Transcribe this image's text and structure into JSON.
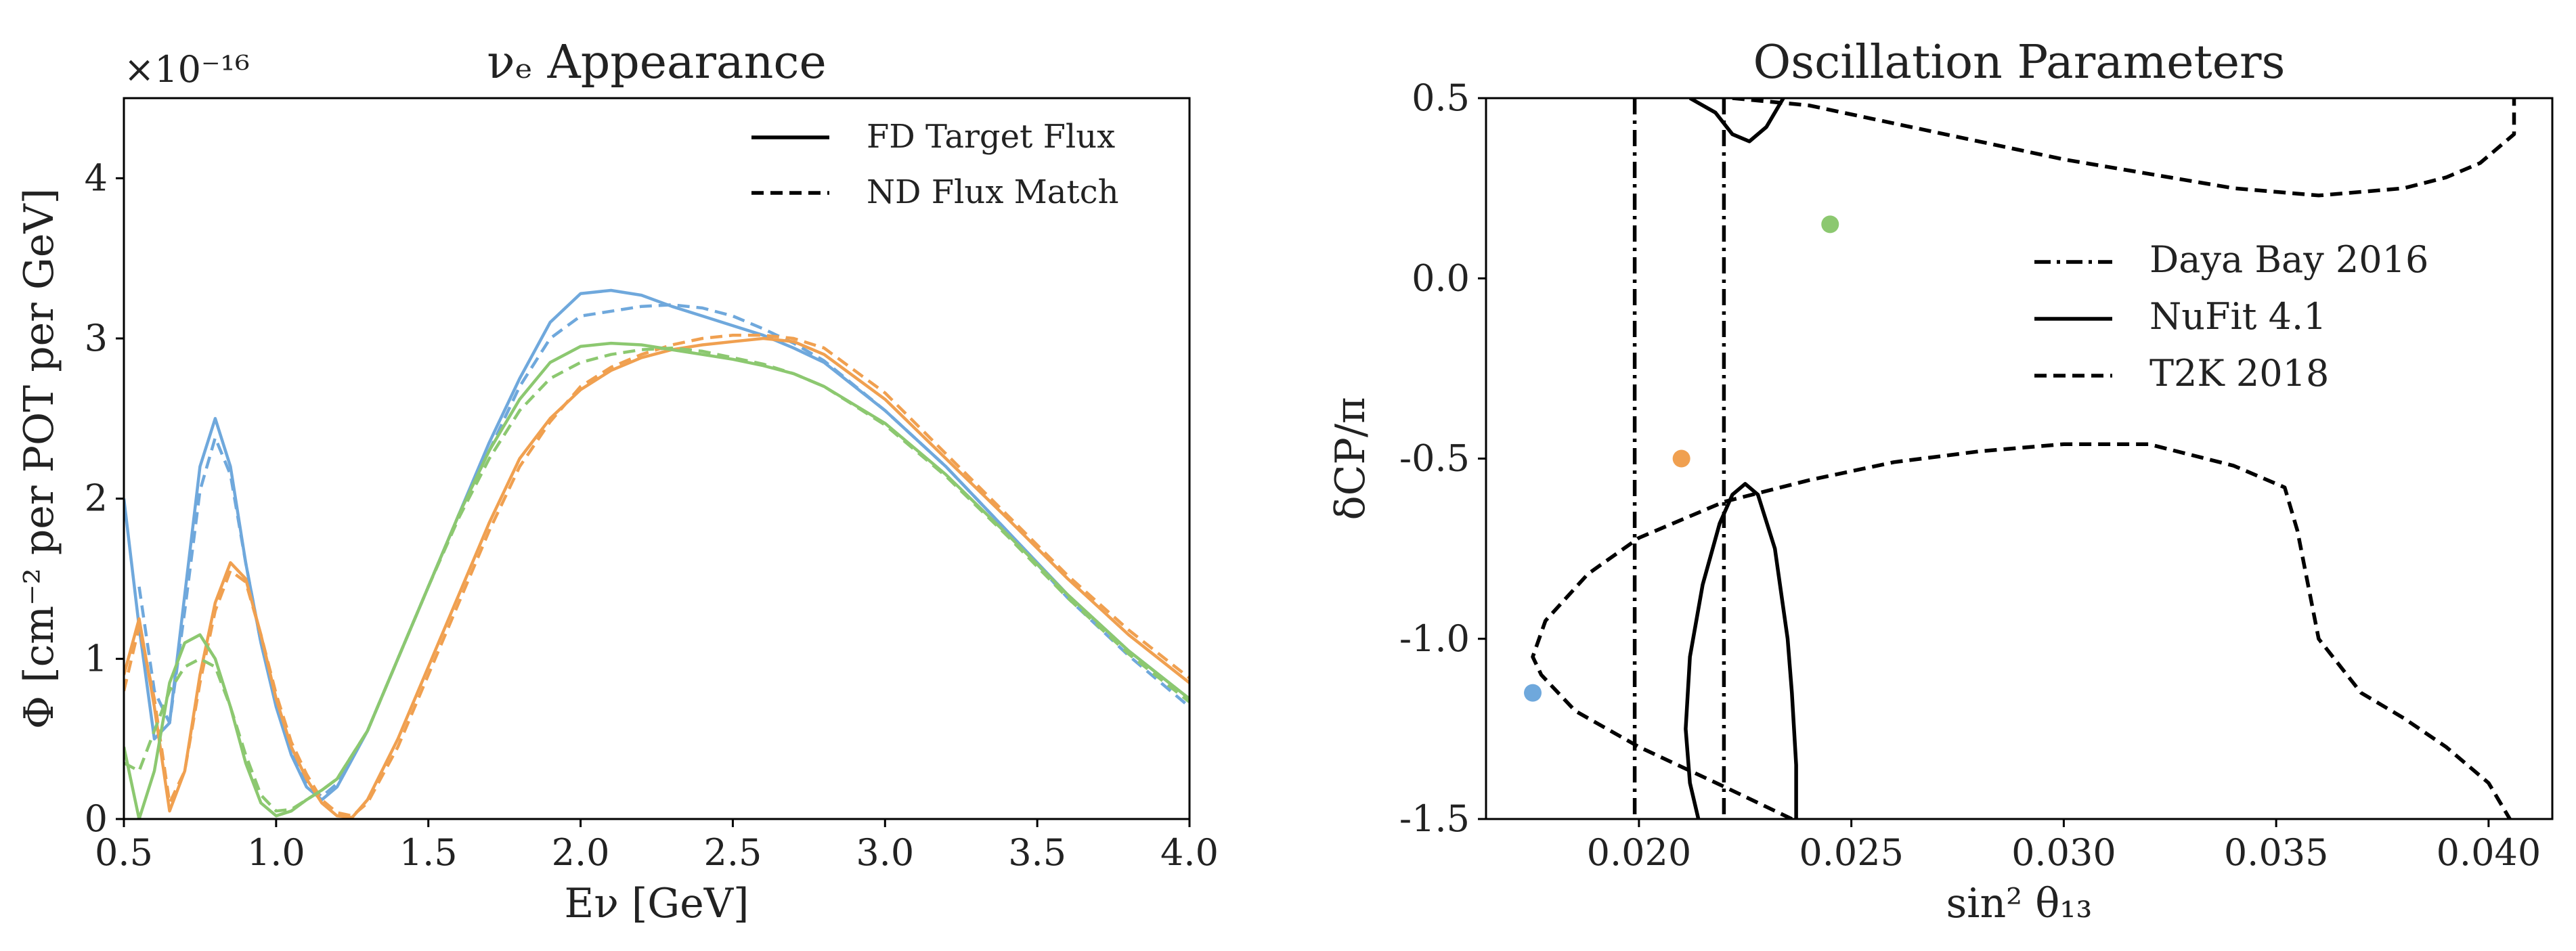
{
  "chart_data": [
    {
      "type": "line",
      "title": "νₑ Appearance",
      "xlabel": "Eν [GeV]",
      "ylabel": "Φ [cm⁻² per POT per GeV]",
      "y_multiplier": "×10⁻¹⁶",
      "xlim": [
        0.5,
        4.0
      ],
      "ylim": [
        0,
        4.5
      ],
      "xticks": [
        "0.5",
        "1.0",
        "1.5",
        "2.0",
        "2.5",
        "3.0",
        "3.5",
        "4.0"
      ],
      "xtick_values": [
        0.5,
        1.0,
        1.5,
        2.0,
        2.5,
        3.0,
        3.5,
        4.0
      ],
      "yticks": [
        "0",
        "1",
        "2",
        "3",
        "4"
      ],
      "ytick_values": [
        0,
        1,
        2,
        3,
        4
      ],
      "legend": [
        {
          "label": "FD Target Flux",
          "style": "solid"
        },
        {
          "label": "ND Flux Match",
          "style": "dashed"
        }
      ],
      "series": [
        {
          "name": "blue FD",
          "color": "#6fa8dc",
          "style": "solid",
          "x": [
            0.5,
            0.55,
            0.6,
            0.65,
            0.7,
            0.75,
            0.8,
            0.85,
            0.9,
            0.95,
            1.0,
            1.05,
            1.1,
            1.15,
            1.2,
            1.3,
            1.4,
            1.5,
            1.6,
            1.7,
            1.8,
            1.9,
            2.0,
            2.1,
            2.2,
            2.3,
            2.4,
            2.5,
            2.6,
            2.7,
            2.8,
            3.0,
            3.2,
            3.4,
            3.6,
            3.8,
            4.0
          ],
          "y": [
            2.0,
            1.2,
            0.5,
            0.6,
            1.4,
            2.2,
            2.5,
            2.2,
            1.6,
            1.1,
            0.7,
            0.4,
            0.2,
            0.12,
            0.2,
            0.55,
            1.0,
            1.45,
            1.9,
            2.35,
            2.75,
            3.1,
            3.28,
            3.3,
            3.27,
            3.2,
            3.14,
            3.08,
            3.02,
            2.94,
            2.85,
            2.55,
            2.2,
            1.8,
            1.4,
            1.05,
            0.75
          ]
        },
        {
          "name": "blue ND",
          "color": "#6fa8dc",
          "style": "dashed",
          "x": [
            0.55,
            0.6,
            0.65,
            0.7,
            0.75,
            0.8,
            0.85,
            0.9,
            0.95,
            1.0,
            1.05,
            1.1,
            1.15,
            1.2,
            1.3,
            1.4,
            1.5,
            1.6,
            1.7,
            1.8,
            1.9,
            2.0,
            2.1,
            2.2,
            2.3,
            2.4,
            2.5,
            2.6,
            2.7,
            2.8,
            3.0,
            3.2,
            3.4,
            3.6,
            3.8,
            4.0
          ],
          "y": [
            1.45,
            0.8,
            0.6,
            1.3,
            2.05,
            2.38,
            2.15,
            1.6,
            1.1,
            0.72,
            0.42,
            0.22,
            0.14,
            0.22,
            0.55,
            1.0,
            1.45,
            1.9,
            2.3,
            2.7,
            3.0,
            3.14,
            3.17,
            3.2,
            3.21,
            3.19,
            3.14,
            3.06,
            2.97,
            2.86,
            2.55,
            2.2,
            1.8,
            1.38,
            1.02,
            0.7
          ]
        },
        {
          "name": "orange FD",
          "color": "#f0a050",
          "style": "solid",
          "x": [
            0.5,
            0.55,
            0.6,
            0.65,
            0.7,
            0.75,
            0.8,
            0.85,
            0.9,
            0.95,
            1.0,
            1.05,
            1.1,
            1.15,
            1.2,
            1.25,
            1.3,
            1.4,
            1.5,
            1.6,
            1.7,
            1.8,
            1.9,
            2.0,
            2.1,
            2.2,
            2.3,
            2.4,
            2.5,
            2.6,
            2.7,
            2.8,
            3.0,
            3.2,
            3.4,
            3.6,
            3.8,
            4.0
          ],
          "y": [
            0.9,
            1.25,
            0.7,
            0.05,
            0.3,
            0.9,
            1.35,
            1.6,
            1.5,
            1.15,
            0.75,
            0.45,
            0.25,
            0.1,
            0.02,
            0.01,
            0.12,
            0.5,
            0.95,
            1.4,
            1.85,
            2.25,
            2.5,
            2.68,
            2.8,
            2.88,
            2.93,
            2.96,
            2.98,
            3.0,
            2.98,
            2.9,
            2.62,
            2.25,
            1.88,
            1.5,
            1.15,
            0.85
          ]
        },
        {
          "name": "orange ND",
          "color": "#f0a050",
          "style": "dashed",
          "x": [
            0.5,
            0.55,
            0.6,
            0.65,
            0.7,
            0.75,
            0.8,
            0.85,
            0.9,
            0.95,
            1.0,
            1.05,
            1.1,
            1.15,
            1.2,
            1.25,
            1.3,
            1.4,
            1.5,
            1.6,
            1.7,
            1.8,
            1.9,
            2.0,
            2.1,
            2.2,
            2.3,
            2.4,
            2.5,
            2.6,
            2.7,
            2.8,
            3.0,
            3.2,
            3.4,
            3.6,
            3.8,
            4.0
          ],
          "y": [
            0.8,
            1.2,
            0.75,
            0.1,
            0.3,
            0.85,
            1.3,
            1.55,
            1.48,
            1.15,
            0.78,
            0.48,
            0.28,
            0.12,
            0.04,
            0.02,
            0.1,
            0.45,
            0.9,
            1.35,
            1.8,
            2.2,
            2.48,
            2.7,
            2.82,
            2.9,
            2.96,
            3.0,
            3.02,
            3.02,
            3.0,
            2.94,
            2.66,
            2.28,
            1.9,
            1.52,
            1.18,
            0.88
          ]
        },
        {
          "name": "green FD",
          "color": "#8cc870",
          "style": "solid",
          "x": [
            0.5,
            0.55,
            0.6,
            0.65,
            0.7,
            0.75,
            0.8,
            0.85,
            0.9,
            0.95,
            1.0,
            1.05,
            1.1,
            1.15,
            1.2,
            1.3,
            1.4,
            1.5,
            1.6,
            1.7,
            1.8,
            1.9,
            2.0,
            2.1,
            2.2,
            2.3,
            2.4,
            2.5,
            2.6,
            2.7,
            2.8,
            3.0,
            3.2,
            3.4,
            3.6,
            3.8,
            4.0
          ],
          "y": [
            0.45,
            0.0,
            0.3,
            0.85,
            1.1,
            1.15,
            1.0,
            0.7,
            0.35,
            0.1,
            0.02,
            0.05,
            0.12,
            0.18,
            0.25,
            0.55,
            1.0,
            1.45,
            1.9,
            2.3,
            2.62,
            2.85,
            2.95,
            2.97,
            2.96,
            2.93,
            2.9,
            2.87,
            2.83,
            2.78,
            2.7,
            2.47,
            2.15,
            1.78,
            1.4,
            1.05,
            0.75
          ]
        },
        {
          "name": "green ND",
          "color": "#8cc870",
          "style": "dashed",
          "x": [
            0.5,
            0.55,
            0.6,
            0.65,
            0.7,
            0.75,
            0.8,
            0.85,
            0.9,
            0.95,
            1.0,
            1.05,
            1.1,
            1.15,
            1.2,
            1.3,
            1.4,
            1.5,
            1.6,
            1.7,
            1.8,
            1.9,
            2.0,
            2.1,
            2.2,
            2.3,
            2.4,
            2.5,
            2.6,
            2.7,
            2.8,
            3.0,
            3.2,
            3.4,
            3.6,
            3.8,
            4.0
          ],
          "y": [
            0.35,
            0.3,
            0.55,
            0.8,
            0.95,
            1.0,
            0.95,
            0.7,
            0.4,
            0.15,
            0.05,
            0.06,
            0.12,
            0.18,
            0.25,
            0.55,
            1.0,
            1.45,
            1.88,
            2.25,
            2.55,
            2.75,
            2.85,
            2.9,
            2.93,
            2.94,
            2.92,
            2.88,
            2.84,
            2.78,
            2.7,
            2.46,
            2.14,
            1.77,
            1.38,
            1.03,
            0.73
          ]
        }
      ]
    },
    {
      "type": "line",
      "title": "Oscillation Parameters",
      "xlabel": "sin² θ₁₃",
      "ylabel": "δCP/π",
      "xlim": [
        0.0164,
        0.0415
      ],
      "ylim": [
        -1.5,
        0.5
      ],
      "xticks": [
        "0.020",
        "0.025",
        "0.030",
        "0.035",
        "0.040"
      ],
      "xtick_values": [
        0.02,
        0.025,
        0.03,
        0.035,
        0.04
      ],
      "yticks": [
        "0.5",
        "0.0",
        "-0.5",
        "-1.0",
        "-1.5"
      ],
      "ytick_values": [
        0.5,
        0.0,
        -0.5,
        -1.0,
        -1.5
      ],
      "legend": [
        {
          "label": "Daya Bay 2016",
          "style": "dashdot"
        },
        {
          "label": "NuFit 4.1",
          "style": "solid"
        },
        {
          "label": "T2K 2018",
          "style": "dashed"
        }
      ],
      "series": [
        {
          "name": "Daya Bay 2016 low",
          "color": "#000000",
          "style": "dashdot",
          "x": [
            0.0199,
            0.0199
          ],
          "y": [
            0.5,
            -1.5
          ]
        },
        {
          "name": "Daya Bay 2016 high",
          "color": "#000000",
          "style": "dashdot",
          "x": [
            0.022,
            0.022
          ],
          "y": [
            0.5,
            -1.5
          ]
        },
        {
          "name": "NuFit 4.1 upper",
          "color": "#000000",
          "style": "solid",
          "x": [
            0.0212,
            0.0218,
            0.0222,
            0.0226,
            0.023,
            0.0234
          ],
          "y": [
            0.5,
            0.46,
            0.4,
            0.38,
            0.42,
            0.5
          ]
        },
        {
          "name": "NuFit 4.1 lower",
          "color": "#000000",
          "style": "solid",
          "x": [
            0.0214,
            0.0212,
            0.0211,
            0.0212,
            0.0215,
            0.0219,
            0.0222,
            0.0225,
            0.0228,
            0.0232,
            0.0235,
            0.0236,
            0.0237,
            0.0237
          ],
          "y": [
            -1.5,
            -1.4,
            -1.25,
            -1.05,
            -0.85,
            -0.68,
            -0.6,
            -0.57,
            -0.6,
            -0.75,
            -1.0,
            -1.15,
            -1.35,
            -1.5
          ]
        },
        {
          "name": "T2K 2018 upper",
          "color": "#000000",
          "style": "dashed",
          "x": [
            0.0222,
            0.024,
            0.026,
            0.028,
            0.03,
            0.032,
            0.034,
            0.036,
            0.038,
            0.039,
            0.0398,
            0.0406,
            0.0406
          ],
          "y": [
            0.5,
            0.48,
            0.43,
            0.38,
            0.33,
            0.29,
            0.25,
            0.23,
            0.25,
            0.28,
            0.32,
            0.4,
            0.5
          ]
        },
        {
          "name": "T2K 2018 lower",
          "color": "#000000",
          "style": "dashed",
          "x": [
            0.0236,
            0.022,
            0.02,
            0.0185,
            0.0177,
            0.0175,
            0.0178,
            0.0188,
            0.02,
            0.022,
            0.024,
            0.026,
            0.028,
            0.03,
            0.032,
            0.034,
            0.0352,
            0.0355,
            0.036,
            0.037,
            0.038,
            0.039,
            0.04,
            0.0405
          ],
          "y": [
            -1.5,
            -1.41,
            -1.3,
            -1.2,
            -1.1,
            -1.05,
            -0.95,
            -0.82,
            -0.72,
            -0.62,
            -0.56,
            -0.51,
            -0.48,
            -0.46,
            -0.46,
            -0.52,
            -0.58,
            -0.7,
            -1.0,
            -1.15,
            -1.22,
            -1.3,
            -1.4,
            -1.5
          ]
        }
      ],
      "points": [
        {
          "x": 0.0245,
          "y": 0.15,
          "color": "#8cc870"
        },
        {
          "x": 0.021,
          "y": -0.5,
          "color": "#f0a050"
        },
        {
          "x": 0.0175,
          "y": -1.15,
          "color": "#6fa8dc"
        }
      ]
    }
  ]
}
